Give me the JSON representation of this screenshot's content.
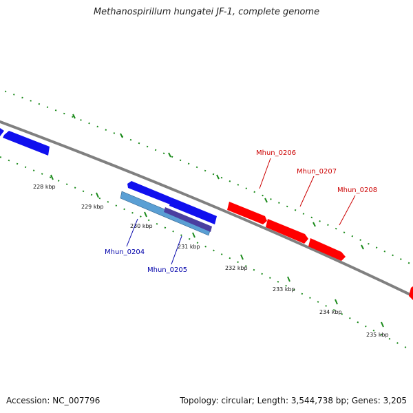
{
  "title": "Methanospirillum hungatei JF-1, complete genome",
  "footer": {
    "accession": "Accession: NC_007796",
    "summary": "Topology: circular; Length: 3,544,738 bp; Genes: 3,205"
  },
  "ticks": [
    {
      "id": "228",
      "label": "228 kbp"
    },
    {
      "id": "229",
      "label": "229 kbp"
    },
    {
      "id": "230",
      "label": "230 kbp"
    },
    {
      "id": "231",
      "label": "231 kbp"
    },
    {
      "id": "232",
      "label": "232 kbp"
    },
    {
      "id": "233",
      "label": "233 kbp"
    },
    {
      "id": "234",
      "label": "234 kbp"
    },
    {
      "id": "235",
      "label": "235 kbp"
    }
  ],
  "genes": [
    {
      "id": "Mhun_0204",
      "label": "Mhun_0204",
      "strand": "minus",
      "color": "#0000cc"
    },
    {
      "id": "Mhun_0205",
      "label": "Mhun_0205",
      "strand": "minus",
      "color": "#0000cc"
    },
    {
      "id": "Mhun_0206",
      "label": "Mhun_0206",
      "strand": "plus",
      "color": "#dd0000"
    },
    {
      "id": "Mhun_0207",
      "label": "Mhun_0207",
      "strand": "plus",
      "color": "#dd0000"
    },
    {
      "id": "Mhun_0208",
      "label": "Mhun_0208",
      "strand": "plus",
      "color": "#dd0000"
    }
  ],
  "colors": {
    "plus_strand": "#ff0000",
    "minus_strand": "#1010ee",
    "feature_light": "#5a9fd4",
    "feature_dark": "#4a3fa0",
    "backbone": "#808080",
    "ticks": "#1a8a1a",
    "label_plus": "#cc0000",
    "label_minus": "#0000aa"
  }
}
